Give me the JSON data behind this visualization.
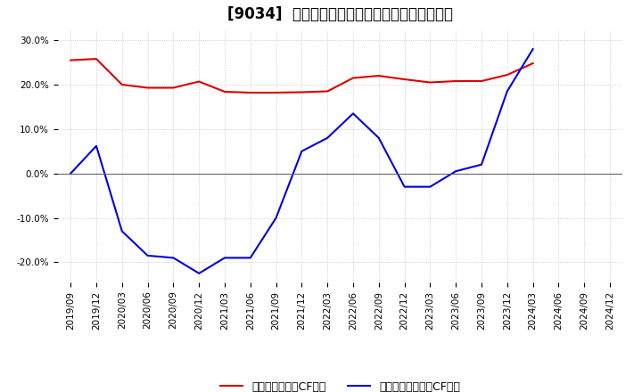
{
  "title": "[9034]  有利子負債キャッシュフロー比率の推移",
  "x_labels": [
    "2019/09",
    "2019/12",
    "2020/03",
    "2020/06",
    "2020/09",
    "2020/12",
    "2021/03",
    "2021/06",
    "2021/09",
    "2021/12",
    "2022/03",
    "2022/06",
    "2022/09",
    "2022/12",
    "2023/03",
    "2023/06",
    "2023/09",
    "2023/12",
    "2024/03",
    "2024/06",
    "2024/09",
    "2024/12"
  ],
  "red_series": {
    "label": "有利子負債営業CF比率",
    "color": "#dd0000",
    "values": [
      0.255,
      0.258,
      0.2,
      0.193,
      0.193,
      0.207,
      0.184,
      0.182,
      0.182,
      0.183,
      0.185,
      0.215,
      0.22,
      0.212,
      0.205,
      0.208,
      0.208,
      0.222,
      0.248,
      null,
      null,
      null
    ]
  },
  "blue_series": {
    "label": "有利子負債フリーCF比率",
    "color": "#0000dd",
    "values": [
      0.0,
      0.062,
      -0.13,
      -0.185,
      -0.19,
      -0.225,
      -0.19,
      -0.19,
      -0.1,
      0.05,
      0.08,
      0.135,
      0.08,
      -0.03,
      -0.03,
      0.005,
      0.02,
      0.185,
      0.28,
      null,
      null,
      null
    ]
  },
  "ylim": [
    -0.245,
    0.32
  ],
  "yticks": [
    -0.2,
    -0.1,
    0.0,
    0.1,
    0.2,
    0.3
  ],
  "ytick_labels": [
    "-20.0%",
    "-10.0%",
    "0.0%",
    "10.0%",
    "20.0%",
    "30.0%"
  ],
  "background_color": "#ffffff",
  "plot_bg_color": "#ffffff",
  "grid_color": "#aaaaaa",
  "title_fontsize": 12,
  "legend_fontsize": 9,
  "tick_fontsize": 7.5
}
